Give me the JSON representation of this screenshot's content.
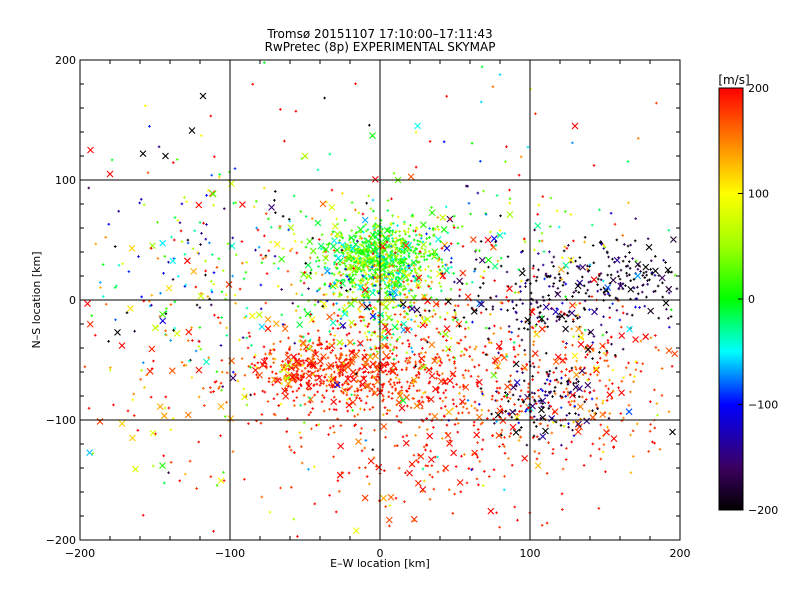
{
  "chart_data": {
    "type": "scatter",
    "title": "Tromsø 20151107 17:10:00–17:11:43",
    "subtitle": "RwPretec (8p) EXPERIMENTAL SKYMAP",
    "xlabel": "E–W location [km]",
    "ylabel": "N–S location [km]",
    "xlim": [
      -200,
      200
    ],
    "ylim": [
      -200,
      200
    ],
    "xticks": [
      -200,
      -100,
      0,
      100,
      200
    ],
    "yticks": [
      -200,
      -100,
      0,
      100,
      200
    ],
    "grid": true,
    "colorbar": {
      "label": "[m/s]",
      "range": [
        -200,
        200
      ],
      "ticks": [
        200,
        100,
        0,
        -100,
        -200
      ],
      "colormap": "rainbow-black-to-red"
    },
    "clusters": [
      {
        "cx": 0,
        "cy": 35,
        "sx": 18,
        "sy": 15,
        "n": 650,
        "vmean": 15,
        "vsd": 35
      },
      {
        "cx": 0,
        "cy": 0,
        "sx": 25,
        "sy": 28,
        "n": 350,
        "vmean": 60,
        "vsd": 80
      },
      {
        "cx": -20,
        "cy": -60,
        "sx": 30,
        "sy": 15,
        "n": 420,
        "vmean": 185,
        "vsd": 18
      },
      {
        "cx": -60,
        "cy": -55,
        "sx": 14,
        "sy": 10,
        "n": 110,
        "vmean": 170,
        "vsd": 60
      },
      {
        "cx": 70,
        "cy": -70,
        "sx": 70,
        "sy": 40,
        "n": 520,
        "vmean": 180,
        "vsd": 30
      },
      {
        "cx": 120,
        "cy": 0,
        "sx": 45,
        "sy": 20,
        "n": 240,
        "vmean": -180,
        "vsd": 40
      },
      {
        "cx": 110,
        "cy": -85,
        "sx": 20,
        "sy": 15,
        "n": 140,
        "vmean": -180,
        "vsd": 40
      },
      {
        "cx": 160,
        "cy": 25,
        "sx": 20,
        "sy": 15,
        "n": 90,
        "vmean": -190,
        "vsd": 30
      },
      {
        "cx": 30,
        "cy": -100,
        "sx": 60,
        "sy": 50,
        "n": 220,
        "vmean": 190,
        "vsd": 15
      },
      {
        "cx": 20,
        "cy": 40,
        "sx": 70,
        "sy": 25,
        "n": 230,
        "vmean": 20,
        "vsd": 110
      },
      {
        "cx": -120,
        "cy": 20,
        "sx": 40,
        "sy": 50,
        "n": 130,
        "vmean": -60,
        "vsd": 110
      },
      {
        "cx": -130,
        "cy": -60,
        "sx": 30,
        "sy": 50,
        "n": 80,
        "vmean": 160,
        "vsd": 60
      },
      {
        "cx": 0,
        "cy": 0,
        "sx": 110,
        "sy": 95,
        "n": 320,
        "vmean": 80,
        "vsd": 140
      },
      {
        "cx": 150,
        "cy": -60,
        "sx": 20,
        "sy": 30,
        "n": 60,
        "vmean": 170,
        "vsd": 50
      }
    ],
    "highlight_points": [
      {
        "x": 130,
        "y": 145,
        "v": 200
      },
      {
        "x": -193,
        "y": 125,
        "v": 200
      },
      {
        "x": -180,
        "y": 105,
        "v": 200
      },
      {
        "x": -158,
        "y": 122,
        "v": -200
      },
      {
        "x": -143,
        "y": 120,
        "v": -200
      },
      {
        "x": -118,
        "y": 170,
        "v": -200
      },
      {
        "x": -5,
        "y": 137,
        "v": 0
      },
      {
        "x": -50,
        "y": 120,
        "v": 60
      },
      {
        "x": -175,
        "y": -27,
        "v": -200
      },
      {
        "x": -172,
        "y": -38,
        "v": 200
      },
      {
        "x": -165,
        "y": -115,
        "v": 120
      },
      {
        "x": -172,
        "y": -103,
        "v": 120
      },
      {
        "x": -163,
        "y": -141,
        "v": 80
      },
      {
        "x": -145,
        "y": -138,
        "v": 10
      },
      {
        "x": -195,
        "y": -3,
        "v": 200
      },
      {
        "x": -145,
        "y": -12,
        "v": 20
      },
      {
        "x": 195,
        "y": -110,
        "v": -200
      },
      {
        "x": 192,
        "y": 25,
        "v": -200
      },
      {
        "x": 72,
        "y": 50,
        "v": 200
      },
      {
        "x": 12,
        "y": 100,
        "v": 30
      }
    ]
  }
}
